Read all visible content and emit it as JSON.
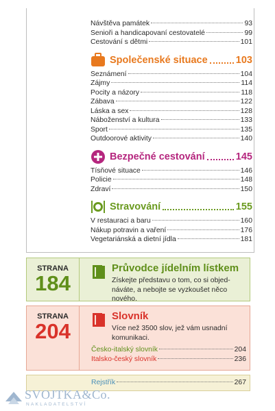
{
  "toc": {
    "entries": [
      {
        "label": "Návštěva památek",
        "page": "93"
      },
      {
        "label": "Senioři a handicapovaní cestovatelé",
        "page": "99"
      },
      {
        "label": "Cestování s dětmi",
        "page": "101"
      }
    ],
    "sections": [
      {
        "title": "Společenské situace",
        "page": "103",
        "entries": [
          {
            "label": "Seznámení",
            "page": "104"
          },
          {
            "label": "Zájmy",
            "page": "114"
          },
          {
            "label": "Pocity a názory",
            "page": "118"
          },
          {
            "label": "Zábava",
            "page": "122"
          },
          {
            "label": "Láska a sex",
            "page": "128"
          },
          {
            "label": "Náboženství a kultura",
            "page": "133"
          },
          {
            "label": "Sport",
            "page": "135"
          },
          {
            "label": "Outdoorové aktivity",
            "page": "140"
          }
        ]
      },
      {
        "title": "Bezpečné cestování",
        "page": "145",
        "entries": [
          {
            "label": "Tísňové situace",
            "page": "146"
          },
          {
            "label": "Policie",
            "page": "148"
          },
          {
            "label": "Zdraví",
            "page": "150"
          }
        ]
      },
      {
        "title": "Stravování",
        "page": "155",
        "entries": [
          {
            "label": "V restauraci a baru",
            "page": "160"
          },
          {
            "label": "Nákup potravin a vaření",
            "page": "176"
          },
          {
            "label": "Vegetariánská a dietní jídla",
            "page": "181"
          }
        ]
      }
    ]
  },
  "features": [
    {
      "strana": "STRANA",
      "number": "184",
      "title": "Průvodce jídelním lístkem",
      "lines": [
        "Získejte představu o tom, co si objed-",
        "náváte, a nebojte se vyzkoušet něco nového."
      ],
      "entries": []
    },
    {
      "strana": "STRANA",
      "number": "204",
      "title": "Slovník",
      "lines": [
        "Více než 3500 slov, jež vám usnadní",
        "komunikaci."
      ],
      "entries": [
        {
          "label": "Česko-italský slovník",
          "page": "204"
        },
        {
          "label": "Italsko-český slovník",
          "page": "236"
        }
      ]
    }
  ],
  "index": {
    "label": "Rejstřík",
    "page": "267"
  },
  "logo": {
    "name": "SVOJTKA&Co.",
    "sub": "NAKLADATELSTVÍ"
  }
}
